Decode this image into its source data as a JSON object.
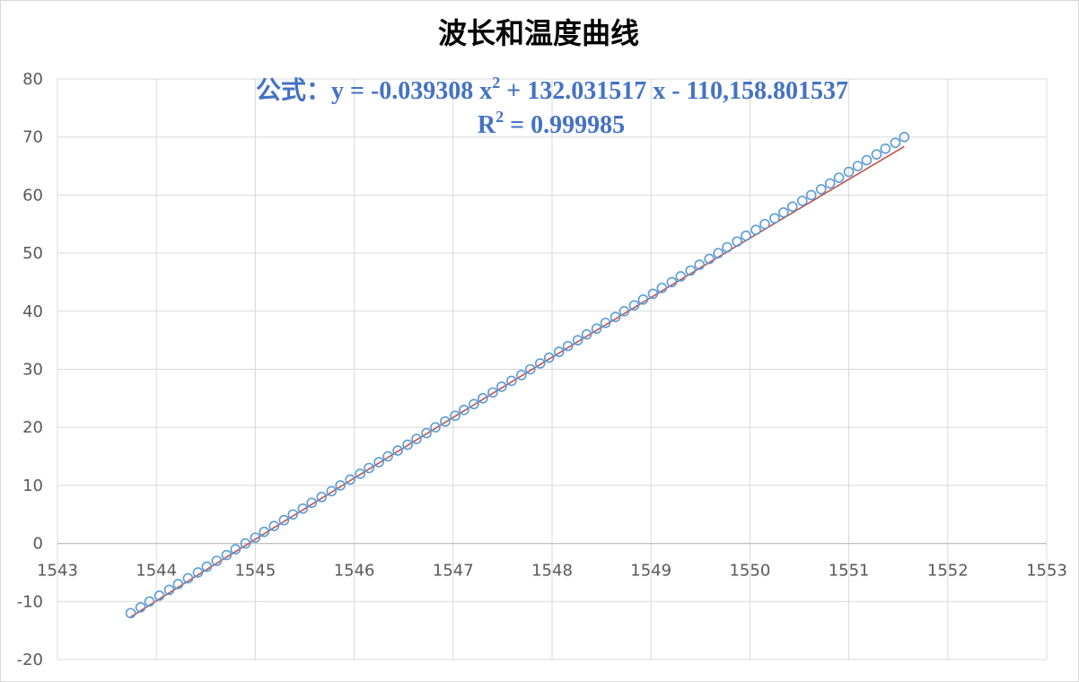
{
  "chart_data": {
    "type": "scatter",
    "title": "波长和温度曲线",
    "xlabel": "",
    "ylabel": "",
    "xlim": [
      1543,
      1553
    ],
    "ylim": [
      -20,
      80
    ],
    "xticks": [
      1543,
      1544,
      1545,
      1546,
      1547,
      1548,
      1549,
      1550,
      1551,
      1552,
      1553
    ],
    "yticks": [
      -20,
      -10,
      0,
      10,
      20,
      30,
      40,
      50,
      60,
      70,
      80
    ],
    "grid": true,
    "legend": "none",
    "trendline": {
      "equation_prefix": "公式：y = -0.039308 x",
      "equation_sup": "2",
      "equation_suffix": " + 132.031517 x - 110,158.801537",
      "r2_prefix": "R",
      "r2_sup": "2",
      "r2_suffix": " = 0.999985",
      "coefficients": {
        "a": -0.039308,
        "b": 132.031517,
        "c": -110158.801537
      },
      "color": "#c0504d"
    },
    "marker_color": "#5b9bd5",
    "series": [
      {
        "y": [
          -12,
          -11,
          -10,
          -9,
          -8,
          -7,
          -6,
          -5,
          -4,
          -3,
          -2,
          -1,
          0,
          1,
          2,
          3,
          4,
          5,
          6,
          7,
          8,
          9,
          10,
          11,
          12,
          13,
          14,
          15,
          16,
          17,
          18,
          19,
          20,
          21,
          22,
          23,
          24,
          25,
          26,
          27,
          28,
          29,
          30,
          31,
          32,
          33,
          34,
          35,
          36,
          37,
          38,
          39,
          40,
          41,
          42,
          43,
          44,
          45,
          46,
          47,
          48,
          49,
          50,
          51,
          52,
          53,
          54,
          55,
          56,
          57,
          58,
          59,
          60,
          61,
          62,
          63,
          64,
          65,
          66,
          67,
          68,
          69,
          70
        ],
        "x": [
          1543.74,
          1543.84,
          1543.93,
          1544.03,
          1544.13,
          1544.22,
          1544.32,
          1544.42,
          1544.51,
          1544.61,
          1544.71,
          1544.8,
          1544.9,
          1545.0,
          1545.09,
          1545.19,
          1545.29,
          1545.38,
          1545.48,
          1545.57,
          1545.67,
          1545.77,
          1545.86,
          1545.96,
          1546.06,
          1546.15,
          1546.25,
          1546.34,
          1546.44,
          1546.54,
          1546.63,
          1546.73,
          1546.82,
          1546.92,
          1547.02,
          1547.11,
          1547.21,
          1547.3,
          1547.4,
          1547.49,
          1547.59,
          1547.69,
          1547.78,
          1547.88,
          1547.97,
          1548.07,
          1548.16,
          1548.26,
          1548.35,
          1548.45,
          1548.54,
          1548.64,
          1548.73,
          1548.83,
          1548.92,
          1549.02,
          1549.11,
          1549.21,
          1549.3,
          1549.4,
          1549.49,
          1549.59,
          1549.68,
          1549.77,
          1549.87,
          1549.96,
          1550.06,
          1550.15,
          1550.25,
          1550.34,
          1550.43,
          1550.53,
          1550.62,
          1550.72,
          1550.81,
          1550.9,
          1551.0,
          1551.09,
          1551.18,
          1551.28,
          1551.37,
          1551.47,
          1551.56
        ]
      }
    ]
  }
}
